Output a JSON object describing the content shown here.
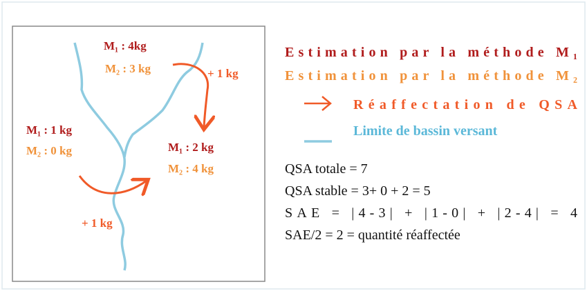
{
  "nodes": [
    {
      "m1": "M₁ : 4kg",
      "m2": "M₂ : 3 kg"
    },
    {
      "m1": "M₁ : 1 kg",
      "m2": "M₂ : 0 kg"
    },
    {
      "m1": "M₁ : 2 kg",
      "m2": "M₂ : 4 kg"
    }
  ],
  "transfers": [
    "+ 1 kg",
    "+ 1 kg"
  ],
  "legend": {
    "method1": "Estimation par la méthode M₁",
    "method2": "Estimation par la méthode M₂",
    "reallocation": "Réaffectation de QSA",
    "basin": "Limite de bassin versant"
  },
  "equations": [
    "QSA totale = 7",
    "QSA stable = 3+ 0 + 2 = 5",
    "SAE = |4-3| + |1-0| + |2-4| = 4",
    "SAE/2 = 2 = quantité réaffectée"
  ]
}
